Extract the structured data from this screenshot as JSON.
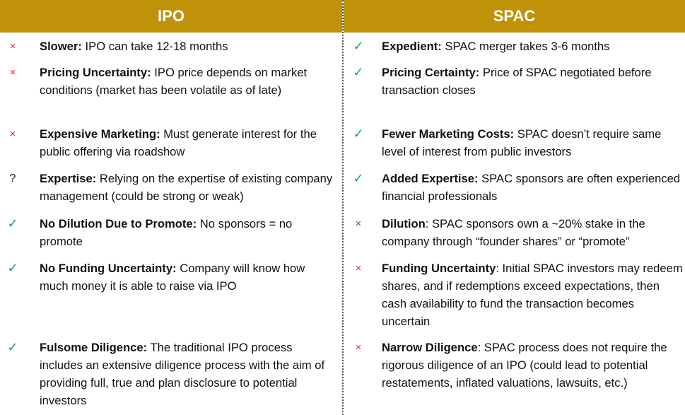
{
  "headers": {
    "ipo": "IPO",
    "spac": "SPAC"
  },
  "ipo_rows": [
    {
      "icon": "x-icon",
      "mark": "×",
      "title": "Slower:",
      "body": " IPO can take 12-18 months"
    },
    {
      "icon": "x-icon",
      "mark": "×",
      "title": "Pricing Uncertainty:",
      "body": " IPO price depends on market conditions (market has been volatile as of late)"
    },
    {
      "icon": "x-icon",
      "mark": "×",
      "title": "Expensive Marketing:",
      "body": " Must generate interest for the public offering via roadshow"
    },
    {
      "icon": "question-icon",
      "mark": "?",
      "title": "Expertise:",
      "body": " Relying on the expertise of existing company management (could be strong or weak)"
    },
    {
      "icon": "checkmark-icon",
      "mark": "✓",
      "title": "No Dilution Due to Promote:",
      "body": " No sponsors = no promote"
    },
    {
      "icon": "checkmark-icon",
      "mark": "✓",
      "title": "No Funding Uncertainty:",
      "body": " Company will know how much money it is able to raise via IPO"
    },
    {
      "icon": "checkmark-icon",
      "mark": "✓",
      "title": "Fulsome Diligence:",
      "body": " The traditional IPO process includes an extensive diligence process with the aim of providing full, true and plan disclosure to potential investors"
    }
  ],
  "spac_rows": [
    {
      "icon": "checkmark-icon",
      "mark": "✓",
      "title": "Expedient:",
      "body": " SPAC merger takes 3-6 months"
    },
    {
      "icon": "checkmark-icon",
      "mark": "✓",
      "title": "Pricing Certainty:",
      "body": " Price of SPAC negotiated before transaction closes"
    },
    {
      "icon": "checkmark-icon",
      "mark": "✓",
      "title": "Fewer Marketing Costs:",
      "body": " SPAC doesn’t require same level of interest from public investors"
    },
    {
      "icon": "checkmark-icon",
      "mark": "✓",
      "title": "Added Expertise:",
      "body": " SPAC sponsors are often experienced financial professionals"
    },
    {
      "icon": "x-icon",
      "mark": "×",
      "title": "Dilution",
      "body": ": SPAC sponsors own a ~20% stake in the company through “founder shares” or “promote”"
    },
    {
      "icon": "x-icon",
      "mark": "×",
      "title": "Funding Uncertainty",
      "body": ": Initial SPAC investors may redeem shares, and if redemptions exceed expectations, then cash availability to fund the transaction becomes uncertain"
    },
    {
      "icon": "x-icon",
      "mark": "×",
      "title": "Narrow Diligence",
      "body": ": SPAC process does not require the rigorous diligence of an IPO (could lead to potential restatements, inflated valuations, lawsuits, etc.)"
    }
  ],
  "colors": {
    "header_bg": "#c0920a",
    "check": "#1fa14a",
    "cross": "#e0242b"
  }
}
